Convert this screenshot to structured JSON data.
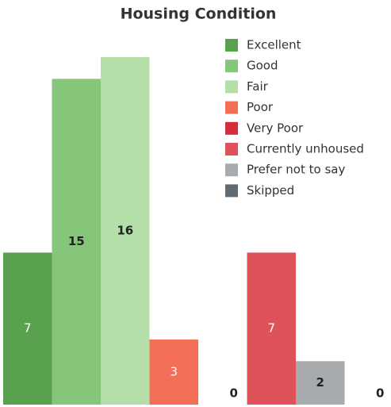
{
  "chart_data": {
    "type": "bar",
    "title": "Housing Condition",
    "categories": [
      "Excellent",
      "Good",
      "Fair",
      "Poor",
      "Very Poor",
      "Currently unhoused",
      "Prefer not to say",
      "Skipped"
    ],
    "values": [
      7,
      15,
      16,
      3,
      0,
      7,
      2,
      0
    ],
    "colors": [
      "#59a14f",
      "#86c67a",
      "#b4dfa8",
      "#f36e56",
      "#d62a3e",
      "#e0525a",
      "#a8abad",
      "#5f6b75"
    ],
    "legend": "top-right"
  }
}
